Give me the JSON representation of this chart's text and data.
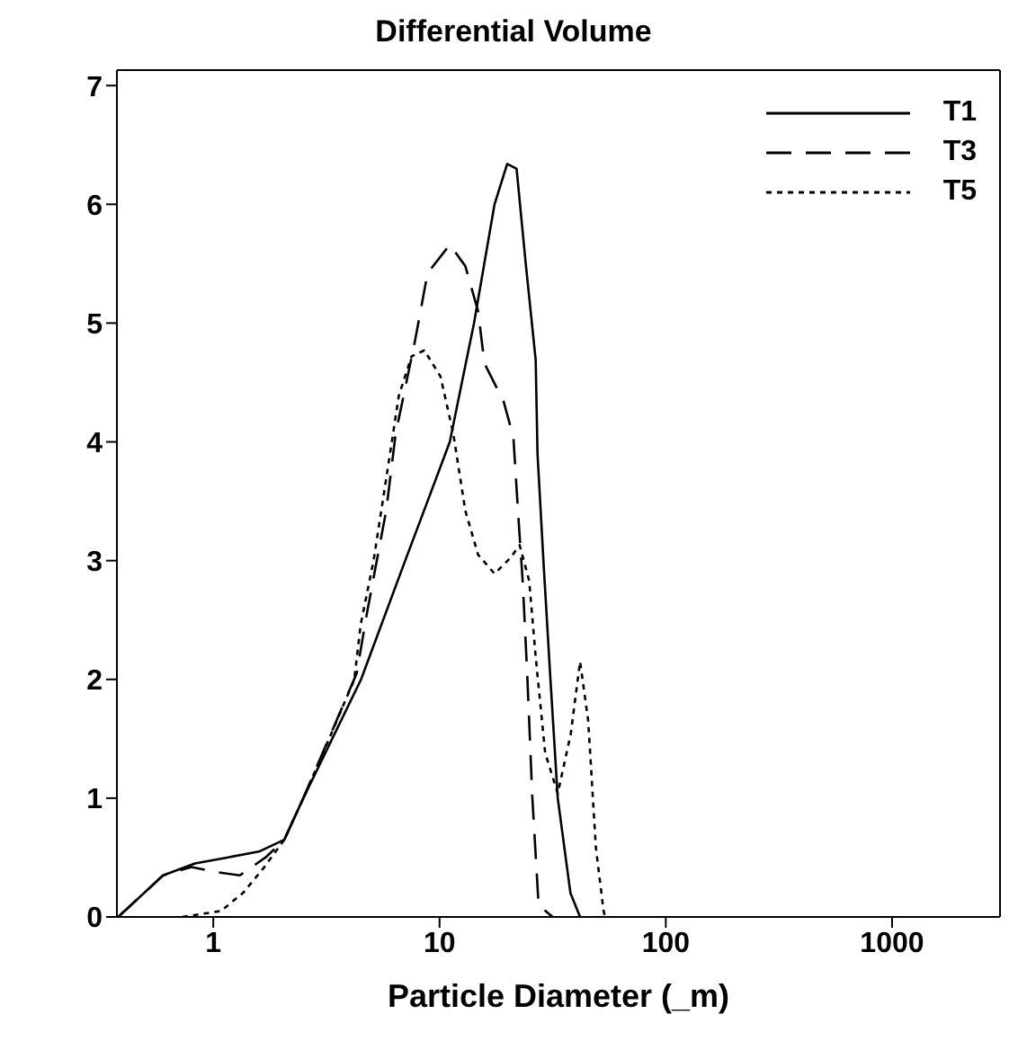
{
  "chart_data": {
    "type": "line",
    "title": "Differential Volume",
    "xlabel": "Particle Diameter (_m)",
    "log": "x",
    "xlim": [
      0.375,
      3000
    ],
    "xticks": [
      1,
      10,
      100,
      1000
    ],
    "ylim": [
      0,
      7.13
    ],
    "yticks": [
      0,
      1,
      2,
      3,
      4,
      5,
      6,
      7
    ],
    "legend": "top right",
    "marker": "none",
    "series": [
      {
        "name": "T1",
        "color": "#000000",
        "line_style": "solid",
        "x": [
          0.38,
          0.6,
          0.83,
          1.15,
          1.59,
          2.06,
          2.5,
          4.5,
          7.05,
          8.85,
          11.1,
          14.2,
          17.5,
          19.9,
          21.9,
          24.1,
          26.6,
          27.1,
          28.9,
          30.8,
          33.3,
          37.9,
          41.8
        ],
        "values": [
          0,
          0.35,
          0.45,
          0.5,
          0.55,
          0.65,
          1,
          2,
          3,
          3.5,
          4,
          5,
          6,
          6.34,
          6.3,
          5.48,
          4.69,
          3.9,
          2.94,
          2.05,
          1,
          0.2,
          0
        ]
      },
      {
        "name": "T3",
        "color": "#000000",
        "line_style": "dashed",
        "x": [
          0.38,
          0.6,
          0.8,
          1.01,
          1.31,
          1.7,
          2.06,
          2.5,
          4.3,
          4.78,
          5.81,
          6.4,
          7.77,
          8.85,
          11.1,
          13,
          14.8,
          15.8,
          19.2,
          21.2,
          22.3,
          23.3,
          24.4,
          25.7,
          27.4,
          31.6
        ],
        "values": [
          0,
          0.35,
          0.42,
          0.38,
          0.35,
          0.5,
          0.65,
          1,
          2.05,
          2.56,
          3.42,
          4.07,
          4.84,
          5.42,
          5.66,
          5.48,
          5.1,
          4.66,
          4.34,
          4.04,
          3.37,
          2.83,
          2.05,
          1.01,
          0.1,
          0
        ]
      },
      {
        "name": "T5",
        "color": "#000000",
        "line_style": "dotted",
        "x": [
          0.73,
          1.08,
          1.35,
          1.65,
          2.06,
          2.5,
          3.25,
          4.2,
          4.48,
          5.1,
          5.81,
          6.61,
          7.52,
          8.57,
          10.1,
          11.5,
          13,
          14.8,
          17.5,
          20.5,
          22.6,
          24.9,
          26.6,
          29.3,
          33.3,
          38,
          41.8,
          45.4,
          49.1,
          53.1,
          53.9
        ],
        "values": [
          0,
          0.05,
          0.2,
          0.4,
          0.65,
          1,
          1.5,
          2,
          2.46,
          2.99,
          3.69,
          4.39,
          4.72,
          4.77,
          4.55,
          4.07,
          3.42,
          3.05,
          2.89,
          3.02,
          3.13,
          2.83,
          2.19,
          1.38,
          1.04,
          1.54,
          2.15,
          1.65,
          0.58,
          0.05,
          0
        ]
      }
    ]
  }
}
